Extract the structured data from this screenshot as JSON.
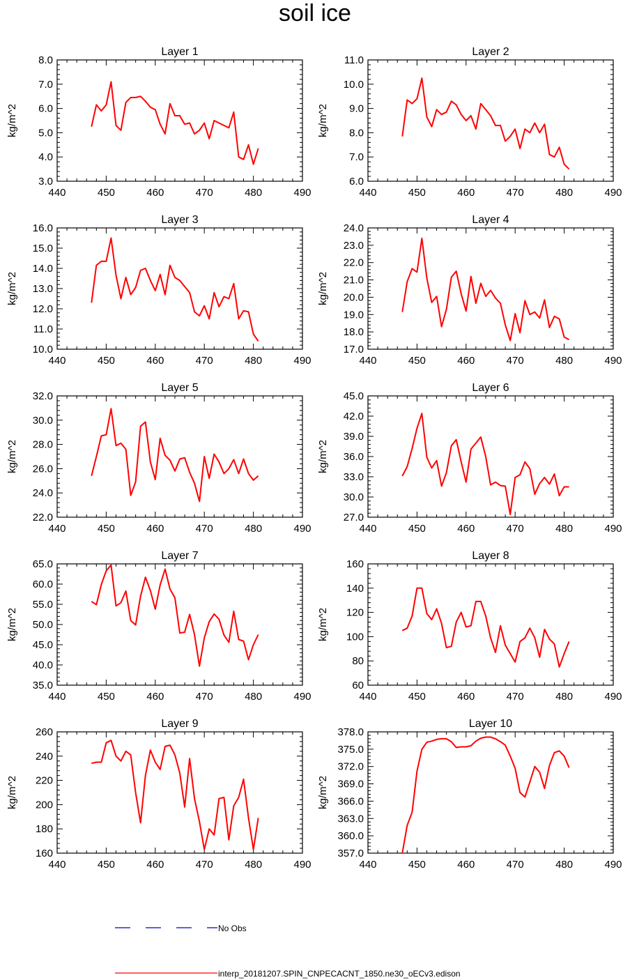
{
  "title": "soil ice",
  "legend": [
    {
      "label": "No Obs",
      "color": "#0000cc",
      "style": "dashed"
    },
    {
      "label": "interp_20181207.SPIN_CNPECACNT_1850.ne30_oECv3.edison",
      "color": "#ff0000",
      "style": "solid"
    }
  ],
  "chart_data": [
    {
      "type": "line",
      "title": "Layer 1",
      "ylabel": "kg/m^2",
      "xlim": [
        440,
        490
      ],
      "xticks": [
        "440",
        "450",
        "460",
        "470",
        "480",
        "490"
      ],
      "ylim": [
        3.0,
        8.0
      ],
      "yticks": [
        "3.0",
        "4.0",
        "5.0",
        "6.0",
        "7.0",
        "8.0"
      ],
      "series": [
        {
          "x": [
            447,
            448,
            449,
            450,
            451,
            452,
            453,
            454,
            455,
            456,
            457,
            458,
            459,
            460,
            461,
            462,
            463,
            464,
            465,
            466,
            467,
            468,
            469,
            470,
            471,
            472,
            473,
            474,
            475,
            476,
            477,
            478,
            479,
            480,
            481
          ],
          "values": [
            5.25,
            6.15,
            5.9,
            6.15,
            7.1,
            5.3,
            5.1,
            6.25,
            6.45,
            6.45,
            6.5,
            6.3,
            6.05,
            5.95,
            5.35,
            4.95,
            6.2,
            5.7,
            5.7,
            5.35,
            5.4,
            4.95,
            5.1,
            5.4,
            4.75,
            5.5,
            5.4,
            5.3,
            5.2,
            5.85,
            4.0,
            3.9,
            4.5,
            3.7,
            4.35
          ]
        }
      ]
    },
    {
      "type": "line",
      "title": "Layer 2",
      "ylabel": "kg/m^2",
      "xlim": [
        440,
        490
      ],
      "xticks": [
        "440",
        "450",
        "460",
        "470",
        "480",
        "490"
      ],
      "ylim": [
        6.0,
        11.0
      ],
      "yticks": [
        "6.0",
        "7.0",
        "8.0",
        "9.0",
        "10.0",
        "11.0"
      ],
      "series": [
        {
          "x": [
            447,
            448,
            449,
            450,
            451,
            452,
            453,
            454,
            455,
            456,
            457,
            458,
            459,
            460,
            461,
            462,
            463,
            464,
            465,
            466,
            467,
            468,
            469,
            470,
            471,
            472,
            473,
            474,
            475,
            476,
            477,
            478,
            479,
            480,
            481
          ],
          "values": [
            7.85,
            9.35,
            9.2,
            9.4,
            10.25,
            8.65,
            8.25,
            8.95,
            8.75,
            8.85,
            9.3,
            9.15,
            8.75,
            8.5,
            8.7,
            8.15,
            9.2,
            8.95,
            8.7,
            8.3,
            8.3,
            7.65,
            7.85,
            8.15,
            7.35,
            8.15,
            8.0,
            8.4,
            8.0,
            8.35,
            7.1,
            7.0,
            7.4,
            6.7,
            6.5
          ]
        }
      ]
    },
    {
      "type": "line",
      "title": "Layer 3",
      "ylabel": "kg/m^2",
      "xlim": [
        440,
        490
      ],
      "xticks": [
        "440",
        "450",
        "460",
        "470",
        "480",
        "490"
      ],
      "ylim": [
        10.0,
        16.0
      ],
      "yticks": [
        "10.0",
        "11.0",
        "12.0",
        "13.0",
        "14.0",
        "15.0",
        "16.0"
      ],
      "series": [
        {
          "x": [
            447,
            448,
            449,
            450,
            451,
            452,
            453,
            454,
            455,
            456,
            457,
            458,
            459,
            460,
            461,
            462,
            463,
            464,
            465,
            466,
            467,
            468,
            469,
            470,
            471,
            472,
            473,
            474,
            475,
            476,
            477,
            478,
            479,
            480,
            481
          ],
          "values": [
            12.3,
            14.15,
            14.35,
            14.35,
            15.5,
            13.65,
            12.5,
            13.55,
            12.7,
            13.05,
            13.9,
            14.0,
            13.4,
            12.9,
            13.7,
            12.7,
            14.15,
            13.55,
            13.4,
            13.1,
            12.8,
            11.85,
            11.65,
            12.15,
            11.5,
            12.8,
            12.1,
            12.6,
            12.5,
            13.25,
            11.5,
            11.9,
            11.85,
            10.75,
            10.4
          ]
        }
      ]
    },
    {
      "type": "line",
      "title": "Layer 4",
      "ylabel": "kg/m^2",
      "xlim": [
        440,
        490
      ],
      "xticks": [
        "440",
        "450",
        "460",
        "470",
        "480",
        "490"
      ],
      "ylim": [
        17.0,
        24.0
      ],
      "yticks": [
        "17.0",
        "18.0",
        "19.0",
        "20.0",
        "21.0",
        "22.0",
        "23.0",
        "24.0"
      ],
      "series": [
        {
          "x": [
            447,
            448,
            449,
            450,
            451,
            452,
            453,
            454,
            455,
            456,
            457,
            458,
            459,
            460,
            461,
            462,
            463,
            464,
            465,
            466,
            467,
            468,
            469,
            470,
            471,
            472,
            473,
            474,
            475,
            476,
            477,
            478,
            479,
            480,
            481
          ],
          "values": [
            19.15,
            20.9,
            21.65,
            21.45,
            23.4,
            21.1,
            19.7,
            20.05,
            18.3,
            19.3,
            21.15,
            21.5,
            20.2,
            19.2,
            21.2,
            19.65,
            20.8,
            20.05,
            20.4,
            19.95,
            19.65,
            18.4,
            17.5,
            19.05,
            17.95,
            19.8,
            19.0,
            19.15,
            18.8,
            19.85,
            18.25,
            18.9,
            18.75,
            17.7,
            17.55
          ]
        }
      ]
    },
    {
      "type": "line",
      "title": "Layer 5",
      "ylabel": "kg/m^2",
      "xlim": [
        440,
        490
      ],
      "xticks": [
        "440",
        "450",
        "460",
        "470",
        "480",
        "490"
      ],
      "ylim": [
        22.0,
        32.0
      ],
      "yticks": [
        "22.0",
        "24.0",
        "26.0",
        "28.0",
        "30.0",
        "32.0"
      ],
      "series": [
        {
          "x": [
            447,
            448,
            449,
            450,
            451,
            452,
            453,
            454,
            455,
            456,
            457,
            458,
            459,
            460,
            461,
            462,
            463,
            464,
            465,
            466,
            467,
            468,
            469,
            470,
            471,
            472,
            473,
            474,
            475,
            476,
            477,
            478,
            479,
            480,
            481
          ],
          "values": [
            25.4,
            27.0,
            28.7,
            28.8,
            30.95,
            27.9,
            28.1,
            27.6,
            23.8,
            24.9,
            29.5,
            29.85,
            26.55,
            25.1,
            28.5,
            27.1,
            26.7,
            25.8,
            26.8,
            26.9,
            25.7,
            24.8,
            23.3,
            27.0,
            25.2,
            27.2,
            26.55,
            25.6,
            26.0,
            26.75,
            25.6,
            26.8,
            25.6,
            25.05,
            25.4
          ]
        }
      ]
    },
    {
      "type": "line",
      "title": "Layer 6",
      "ylabel": "kg/m^2",
      "xlim": [
        440,
        490
      ],
      "xticks": [
        "440",
        "450",
        "460",
        "470",
        "480",
        "490"
      ],
      "ylim": [
        27.0,
        45.0
      ],
      "yticks": [
        "27.0",
        "30.0",
        "33.0",
        "36.0",
        "39.0",
        "42.0",
        "45.0"
      ],
      "series": [
        {
          "x": [
            447,
            448,
            449,
            450,
            451,
            452,
            453,
            454,
            455,
            456,
            457,
            458,
            459,
            460,
            461,
            462,
            463,
            464,
            465,
            466,
            467,
            468,
            469,
            470,
            471,
            472,
            473,
            474,
            475,
            476,
            477,
            478,
            479,
            480,
            481
          ],
          "values": [
            33.1,
            34.5,
            37.2,
            40.2,
            42.4,
            35.9,
            34.3,
            35.4,
            31.6,
            33.6,
            37.6,
            38.5,
            35.2,
            32.2,
            37.1,
            38.0,
            38.9,
            36.0,
            31.8,
            32.2,
            31.7,
            31.6,
            27.4,
            32.9,
            33.3,
            35.2,
            34.2,
            30.4,
            32.0,
            32.9,
            31.9,
            33.4,
            30.2,
            31.5,
            31.5
          ]
        }
      ]
    },
    {
      "type": "line",
      "title": "Layer 7",
      "ylabel": "kg/m^2",
      "xlim": [
        440,
        490
      ],
      "xticks": [
        "440",
        "450",
        "460",
        "470",
        "480",
        "490"
      ],
      "ylim": [
        35.0,
        65.0
      ],
      "yticks": [
        "35.0",
        "40.0",
        "45.0",
        "50.0",
        "55.0",
        "60.0",
        "65.0"
      ],
      "series": [
        {
          "x": [
            447,
            448,
            449,
            450,
            451,
            452,
            453,
            454,
            455,
            456,
            457,
            458,
            459,
            460,
            461,
            462,
            463,
            464,
            465,
            466,
            467,
            468,
            469,
            470,
            471,
            472,
            473,
            474,
            475,
            476,
            477,
            478,
            479,
            480,
            481
          ],
          "values": [
            55.7,
            54.9,
            59.9,
            63.3,
            64.7,
            54.6,
            55.4,
            58.3,
            51.0,
            49.9,
            57.0,
            61.7,
            58.4,
            53.8,
            59.8,
            63.7,
            58.8,
            56.6,
            47.9,
            48.1,
            52.5,
            47.5,
            39.7,
            46.7,
            50.7,
            52.6,
            51.3,
            47.4,
            45.6,
            53.3,
            46.3,
            45.9,
            41.3,
            45.0,
            47.5
          ]
        }
      ]
    },
    {
      "type": "line",
      "title": "Layer 8",
      "ylabel": "kg/m^2",
      "xlim": [
        440,
        490
      ],
      "xticks": [
        "440",
        "450",
        "460",
        "470",
        "480",
        "490"
      ],
      "ylim": [
        60,
        160
      ],
      "yticks": [
        "60",
        "80",
        "100",
        "120",
        "140",
        "160"
      ],
      "series": [
        {
          "x": [
            447,
            448,
            449,
            450,
            451,
            452,
            453,
            454,
            455,
            456,
            457,
            458,
            459,
            460,
            461,
            462,
            463,
            464,
            465,
            466,
            467,
            468,
            469,
            470,
            471,
            472,
            473,
            474,
            475,
            476,
            477,
            478,
            479,
            480,
            481
          ],
          "values": [
            105,
            107,
            117,
            140,
            140,
            119,
            114,
            123,
            111,
            91,
            92,
            112,
            120,
            108,
            109,
            129,
            129,
            117,
            99,
            87,
            109,
            93,
            86,
            79,
            96,
            99,
            107,
            99,
            83,
            106,
            98,
            94,
            75,
            86,
            96
          ]
        }
      ]
    },
    {
      "type": "line",
      "title": "Layer 9",
      "ylabel": "kg/m^2",
      "xlim": [
        440,
        490
      ],
      "xticks": [
        "440",
        "450",
        "460",
        "470",
        "480",
        "490"
      ],
      "ylim": [
        160,
        260
      ],
      "yticks": [
        "160",
        "180",
        "200",
        "220",
        "240",
        "260"
      ],
      "series": [
        {
          "x": [
            447,
            448,
            449,
            450,
            451,
            452,
            453,
            454,
            455,
            456,
            457,
            458,
            459,
            460,
            461,
            462,
            463,
            464,
            465,
            466,
            467,
            468,
            469,
            470,
            471,
            472,
            473,
            474,
            475,
            476,
            477,
            478,
            479,
            480,
            481
          ],
          "values": [
            234,
            235,
            235,
            251,
            253,
            240,
            236,
            244,
            241,
            210,
            185,
            224,
            245,
            235,
            229,
            248,
            249,
            241,
            226,
            198,
            238,
            205,
            186,
            163,
            180,
            175,
            205,
            206,
            171,
            199,
            206,
            221,
            189,
            163,
            189
          ]
        }
      ]
    },
    {
      "type": "line",
      "title": "Layer 10",
      "ylabel": "kg/m^2",
      "xlim": [
        440,
        490
      ],
      "xticks": [
        "440",
        "450",
        "460",
        "470",
        "480",
        "490"
      ],
      "ylim": [
        357.0,
        378.0
      ],
      "yticks": [
        "357.0",
        "360.0",
        "363.0",
        "366.0",
        "369.0",
        "372.0",
        "375.0",
        "378.0"
      ],
      "series": [
        {
          "x": [
            447,
            448,
            449,
            450,
            451,
            452,
            453,
            454,
            455,
            456,
            457,
            458,
            459,
            460,
            461,
            462,
            463,
            464,
            465,
            466,
            467,
            468,
            469,
            470,
            471,
            472,
            473,
            474,
            475,
            476,
            477,
            478,
            479,
            480,
            481
          ],
          "values": [
            357.0,
            361.8,
            364.1,
            371.2,
            375.0,
            376.2,
            376.4,
            376.7,
            376.8,
            376.8,
            376.3,
            375.3,
            375.4,
            375.4,
            375.6,
            376.4,
            376.9,
            377.1,
            377.1,
            376.8,
            376.3,
            375.7,
            373.8,
            371.7,
            367.5,
            366.7,
            369.3,
            372.0,
            371.0,
            368.2,
            372.2,
            374.4,
            374.7,
            373.8,
            371.8
          ]
        }
      ]
    }
  ]
}
